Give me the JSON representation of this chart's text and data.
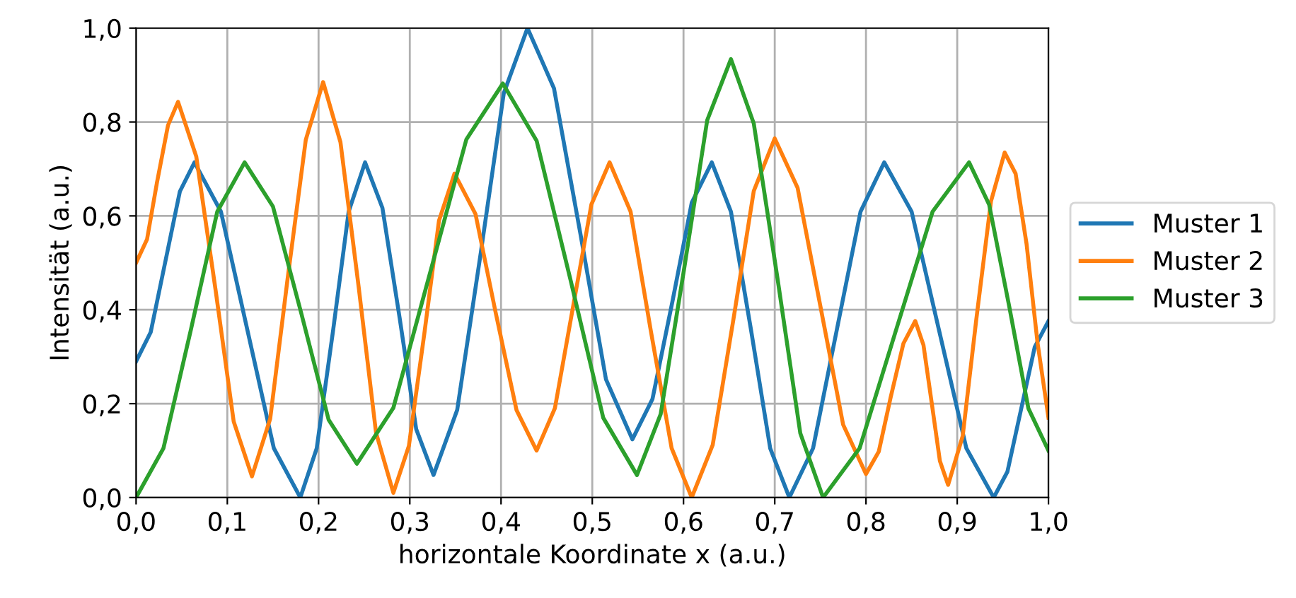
{
  "chart_data": {
    "type": "line",
    "xlabel": "horizontale Koordinate x (a.u.)",
    "ylabel": "Intensität (a.u.)",
    "xlim": [
      0,
      1
    ],
    "ylim": [
      0,
      1
    ],
    "xticks": [
      {
        "value": 0,
        "label": "0,0"
      },
      {
        "value": 0.1,
        "label": "0,1"
      },
      {
        "value": 0.2,
        "label": "0,2"
      },
      {
        "value": 0.3,
        "label": "0,3"
      },
      {
        "value": 0.4,
        "label": "0,4"
      },
      {
        "value": 0.5,
        "label": "0,5"
      },
      {
        "value": 0.6,
        "label": "0,6"
      },
      {
        "value": 0.7,
        "label": "0,7"
      },
      {
        "value": 0.8,
        "label": "0,8"
      },
      {
        "value": 0.9,
        "label": "0,9"
      },
      {
        "value": 1,
        "label": "1,0"
      }
    ],
    "yticks": [
      {
        "value": 0,
        "label": "0,0"
      },
      {
        "value": 0.2,
        "label": "0,2"
      },
      {
        "value": 0.4,
        "label": "0,4"
      },
      {
        "value": 0.6,
        "label": "0,6"
      },
      {
        "value": 0.8,
        "label": "0,8"
      },
      {
        "value": 1,
        "label": "1,0"
      }
    ],
    "grid": true,
    "legend": "right",
    "marker": "none",
    "line_style": "solid",
    "series": [
      {
        "name": "Muster 1",
        "color": "#1f77b4",
        "x": [
          0,
          0.016,
          0.032,
          0.048,
          0.064,
          0.093,
          0.122,
          0.151,
          0.18,
          0.198,
          0.216,
          0.233,
          0.251,
          0.27,
          0.289,
          0.307,
          0.326,
          0.352,
          0.378,
          0.403,
          0.429,
          0.458,
          0.487,
          0.515,
          0.544,
          0.566,
          0.588,
          0.609,
          0.631,
          0.652,
          0.674,
          0.695,
          0.716,
          0.742,
          0.768,
          0.794,
          0.82,
          0.85,
          0.88,
          0.91,
          0.94,
          0.955,
          0.97,
          0.985,
          1.0
        ],
        "values": [
          0.29,
          0.352,
          0.502,
          0.652,
          0.714,
          0.609,
          0.357,
          0.105,
          0.0,
          0.105,
          0.357,
          0.609,
          0.714,
          0.617,
          0.381,
          0.146,
          0.048,
          0.187,
          0.524,
          0.861,
          1.0,
          0.872,
          0.562,
          0.252,
          0.124,
          0.21,
          0.419,
          0.628,
          0.714,
          0.609,
          0.357,
          0.105,
          0.0,
          0.105,
          0.357,
          0.609,
          0.714,
          0.609,
          0.357,
          0.105,
          0.0,
          0.055,
          0.188,
          0.321,
          0.376
        ]
      },
      {
        "name": "Muster 2",
        "color": "#ff7f0e",
        "x": [
          0,
          0.012,
          0.023,
          0.035,
          0.046,
          0.066,
          0.087,
          0.107,
          0.127,
          0.147,
          0.166,
          0.186,
          0.205,
          0.224,
          0.244,
          0.263,
          0.282,
          0.299,
          0.316,
          0.332,
          0.349,
          0.372,
          0.394,
          0.417,
          0.439,
          0.459,
          0.479,
          0.499,
          0.519,
          0.542,
          0.564,
          0.587,
          0.609,
          0.632,
          0.655,
          0.677,
          0.7,
          0.725,
          0.75,
          0.775,
          0.8,
          0.814,
          0.827,
          0.841,
          0.854,
          0.863,
          0.872,
          0.881,
          0.89,
          0.906,
          0.921,
          0.937,
          0.952,
          0.964,
          0.976,
          0.988,
          1.0
        ],
        "values": [
          0.5,
          0.55,
          0.672,
          0.793,
          0.843,
          0.726,
          0.444,
          0.162,
          0.045,
          0.168,
          0.465,
          0.762,
          0.885,
          0.757,
          0.448,
          0.138,
          0.01,
          0.11,
          0.35,
          0.59,
          0.69,
          0.604,
          0.395,
          0.186,
          0.1,
          0.19,
          0.407,
          0.624,
          0.714,
          0.609,
          0.357,
          0.105,
          0.0,
          0.112,
          0.383,
          0.653,
          0.765,
          0.66,
          0.408,
          0.155,
          0.05,
          0.098,
          0.213,
          0.328,
          0.376,
          0.325,
          0.202,
          0.078,
          0.027,
          0.131,
          0.381,
          0.631,
          0.735,
          0.69,
          0.54,
          0.33,
          0.17
        ]
      },
      {
        "name": "Muster 3",
        "color": "#2ca02c",
        "x": [
          0,
          0.03,
          0.06,
          0.089,
          0.119,
          0.15,
          0.181,
          0.211,
          0.242,
          0.282,
          0.322,
          0.362,
          0.402,
          0.439,
          0.476,
          0.512,
          0.549,
          0.575,
          0.601,
          0.626,
          0.652,
          0.677,
          0.703,
          0.728,
          0.753,
          0.793,
          0.833,
          0.873,
          0.913,
          0.935,
          0.957,
          0.978,
          1.0
        ],
        "values": [
          0.0,
          0.105,
          0.357,
          0.609,
          0.714,
          0.62,
          0.393,
          0.166,
          0.072,
          0.191,
          0.477,
          0.763,
          0.882,
          0.76,
          0.465,
          0.17,
          0.048,
          0.178,
          0.491,
          0.804,
          0.934,
          0.797,
          0.467,
          0.137,
          0.0,
          0.105,
          0.357,
          0.609,
          0.714,
          0.624,
          0.407,
          0.19,
          0.1
        ]
      }
    ]
  }
}
